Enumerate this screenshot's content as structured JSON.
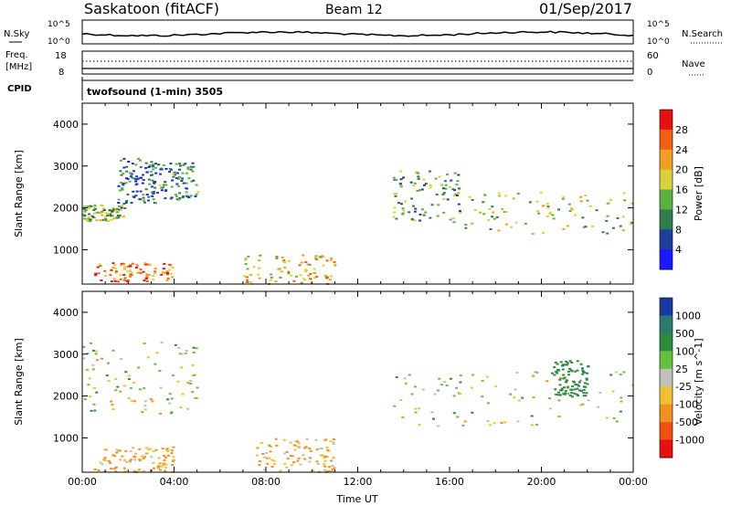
{
  "header": {
    "station": "Saskatoon (fitACF)",
    "beam": "Beam 12",
    "date": "01/Sep/2017"
  },
  "top_panels": {
    "nsky_label": "N.Sky",
    "nsky_ticks": [
      "10^5",
      "10^0"
    ],
    "nsearch_label": "N.Search",
    "nsearch_ticks": [
      "10^5",
      "10^0"
    ],
    "freq_label": "Freq.",
    "freq_unit": "[MHz]",
    "freq_ticks": [
      "18",
      "8"
    ],
    "nave_label": "Nave",
    "nave_ticks": [
      "60",
      "0"
    ],
    "cpid_label": "CPID",
    "cpid_text": "twofsound (1-min) 3505"
  },
  "chart_data": [
    {
      "type": "heatmap",
      "panel": "power",
      "ylabel": "Slant Range [km]",
      "y_ticks": [
        "4000",
        "3000",
        "2000",
        "1000"
      ],
      "ylim": [
        180,
        4500
      ],
      "xlim": [
        "00:00",
        "24:00"
      ],
      "colorbar_label": "Power [dB]",
      "colorbar_ticks": [
        "28",
        "24",
        "20",
        "16",
        "12",
        "8",
        "4"
      ],
      "colors": [
        "#1a1aff",
        "#1e3fa0",
        "#2e7d4a",
        "#5cb040",
        "#d8d23a",
        "#f0a020",
        "#f06010",
        "#e81010"
      ],
      "echo_regions": [
        {
          "t_start": "00:00",
          "t_end": "01:50",
          "range_km": [
            1700,
            2100
          ],
          "power_db": 14
        },
        {
          "t_start": "01:30",
          "t_end": "03:10",
          "range_km": [
            2100,
            3200
          ],
          "power_db": 8
        },
        {
          "t_start": "03:00",
          "t_end": "05:00",
          "range_km": [
            2200,
            3100
          ],
          "power_db": 10
        },
        {
          "t_start": "00:30",
          "t_end": "04:00",
          "range_km": [
            250,
            700
          ],
          "power_db": 24
        },
        {
          "t_start": "07:00",
          "t_end": "11:00",
          "range_km": [
            200,
            900
          ],
          "power_db": 20
        },
        {
          "t_start": "13:30",
          "t_end": "16:30",
          "range_km": [
            1700,
            2900
          ],
          "power_db": 12
        },
        {
          "t_start": "16:00",
          "t_end": "24:00",
          "range_km": [
            1400,
            2400
          ],
          "power_db": 16
        }
      ]
    },
    {
      "type": "heatmap",
      "panel": "velocity",
      "ylabel": "Slant Range [km]",
      "y_ticks": [
        "4000",
        "3000",
        "2000",
        "1000"
      ],
      "ylim": [
        180,
        4500
      ],
      "xlim": [
        "00:00",
        "24:00"
      ],
      "x_ticks": [
        "00:00",
        "04:00",
        "08:00",
        "12:00",
        "16:00",
        "20:00",
        "00:00"
      ],
      "xlabel": "Time UT",
      "colorbar_label": "Velocity [m s^-1]",
      "colorbar_ticks": [
        "1000",
        "500",
        "100",
        "25",
        "-25",
        "-100",
        "-500",
        "-1000"
      ],
      "colors": [
        "#1a3aa0",
        "#2a7a70",
        "#2e8b3e",
        "#66c040",
        "#c0c0b8",
        "#f0c030",
        "#f09020",
        "#f05010",
        "#e81010"
      ],
      "echo_regions": [
        {
          "t_start": "00:00",
          "t_end": "05:00",
          "range_km": [
            1600,
            3300
          ],
          "velocity": 0
        },
        {
          "t_start": "00:30",
          "t_end": "04:00",
          "range_km": [
            200,
            800
          ],
          "velocity": -150
        },
        {
          "t_start": "07:30",
          "t_end": "11:00",
          "range_km": [
            200,
            1000
          ],
          "velocity": -120
        },
        {
          "t_start": "13:30",
          "t_end": "24:00",
          "range_km": [
            1300,
            2600
          ],
          "velocity": 0
        },
        {
          "t_start": "20:30",
          "t_end": "22:00",
          "range_km": [
            2000,
            2900
          ],
          "velocity": 400
        }
      ]
    }
  ]
}
